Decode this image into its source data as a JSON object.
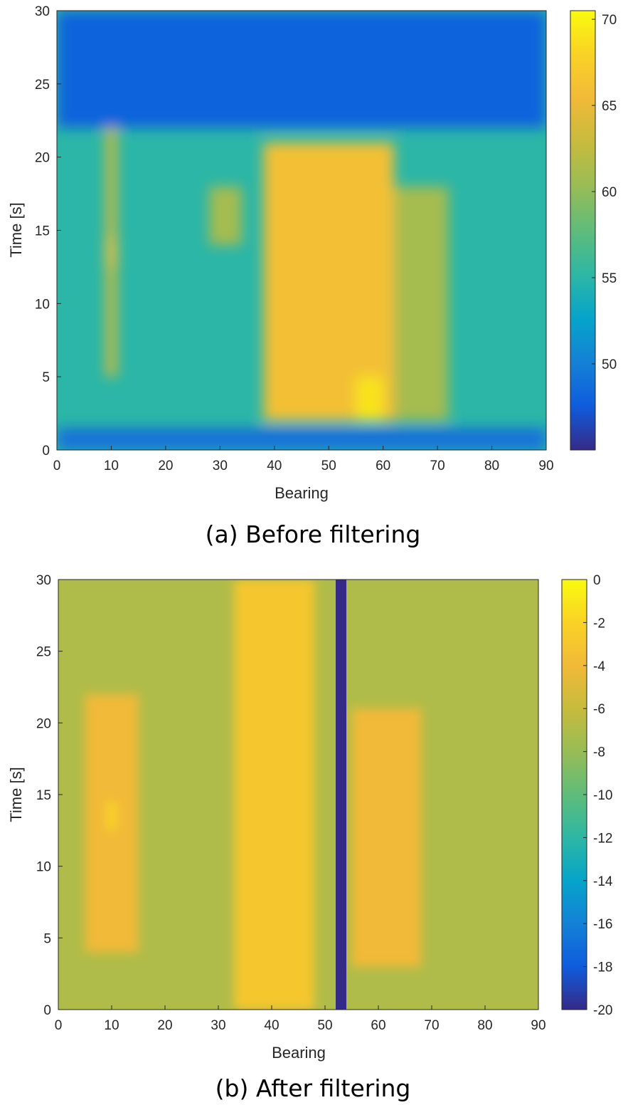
{
  "chart_data": [
    {
      "type": "heatmap",
      "caption": "(a) Before filtering",
      "xlabel": "Bearing",
      "ylabel": "Time [s]",
      "xlim": [
        0,
        90
      ],
      "ylim": [
        0,
        30
      ],
      "xticks": [
        0,
        10,
        20,
        30,
        40,
        50,
        60,
        70,
        80,
        90
      ],
      "yticks": [
        0,
        5,
        10,
        15,
        20,
        25,
        30
      ],
      "colormap": "parula",
      "clim": [
        45,
        70.5
      ],
      "colorbar_ticks": [
        50,
        55,
        60,
        65,
        70
      ],
      "background_level": 55,
      "features": [
        {
          "x_range": [
            0,
            90
          ],
          "y_range": [
            22,
            30
          ],
          "value": 48,
          "desc": "low band top"
        },
        {
          "x_range": [
            0,
            90
          ],
          "y_range": [
            0,
            1.5
          ],
          "value": 49,
          "desc": "low band bottom"
        },
        {
          "x_range": [
            38,
            62
          ],
          "y_range": [
            2,
            21
          ],
          "value": 66,
          "desc": "strong region"
        },
        {
          "x_range": [
            55,
            60
          ],
          "y_range": [
            2,
            5
          ],
          "value": 69,
          "desc": "peak"
        },
        {
          "x_range": [
            62,
            72
          ],
          "y_range": [
            2,
            18
          ],
          "value": 61,
          "desc": "medium region"
        },
        {
          "x_range": [
            9,
            11
          ],
          "y_range": [
            5,
            22
          ],
          "value": 63,
          "desc": "track near 10"
        },
        {
          "x_range": [
            9,
            11
          ],
          "y_range": [
            12.5,
            14.5
          ],
          "value": 66,
          "desc": "hot spot"
        },
        {
          "x_range": [
            28,
            34
          ],
          "y_range": [
            14,
            18
          ],
          "value": 61,
          "desc": "minor spot"
        }
      ]
    },
    {
      "type": "heatmap",
      "caption": "(b) After filtering",
      "xlabel": "Bearing",
      "ylabel": "Time [s]",
      "xlim": [
        0,
        90
      ],
      "ylim": [
        0,
        30
      ],
      "xticks": [
        0,
        10,
        20,
        30,
        40,
        50,
        60,
        70,
        80,
        90
      ],
      "yticks": [
        0,
        5,
        10,
        15,
        20,
        25,
        30
      ],
      "colormap": "parula",
      "clim": [
        -20,
        0
      ],
      "colorbar_ticks": [
        0,
        -2,
        -4,
        -6,
        -8,
        -10,
        -12,
        -14,
        -16,
        -18,
        -20
      ],
      "background_level": -7,
      "features": [
        {
          "x_range": [
            33,
            48
          ],
          "y_range": [
            0,
            30
          ],
          "value": -3,
          "desc": "wide bright band"
        },
        {
          "x_range": [
            52,
            54
          ],
          "y_range": [
            0,
            30
          ],
          "value": -20,
          "desc": "notch (filtered bearing)"
        },
        {
          "x_range": [
            55,
            68
          ],
          "y_range": [
            3,
            21
          ],
          "value": -4,
          "desc": "right region"
        },
        {
          "x_range": [
            5,
            15
          ],
          "y_range": [
            4,
            22
          ],
          "value": -4,
          "desc": "left region"
        },
        {
          "x_range": [
            9,
            11
          ],
          "y_range": [
            12.5,
            14.5
          ],
          "value": -2,
          "desc": "hot spot"
        }
      ]
    }
  ]
}
